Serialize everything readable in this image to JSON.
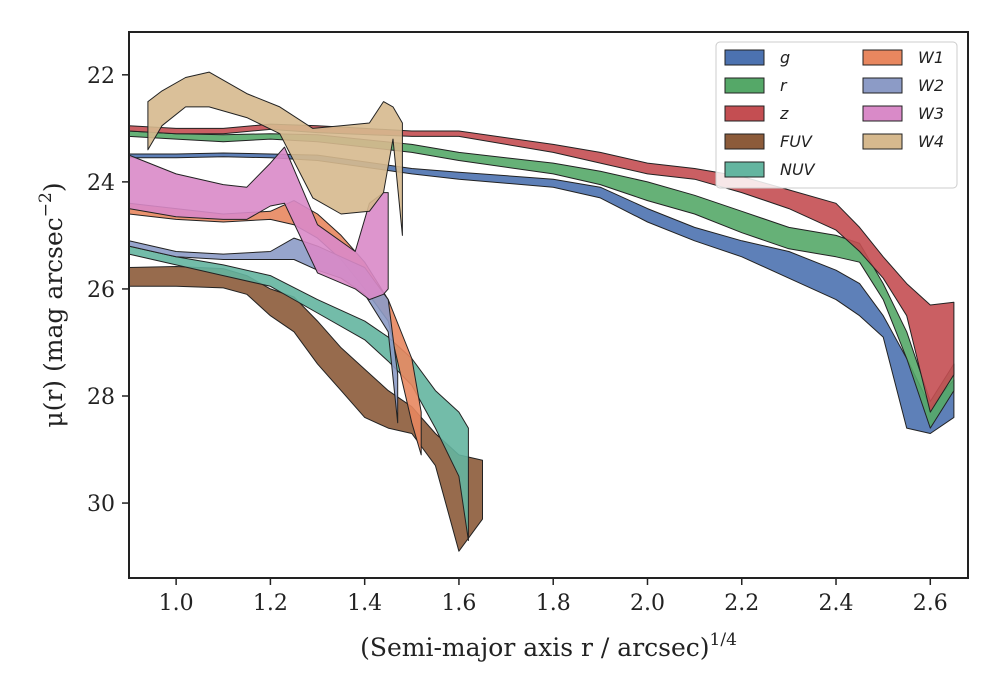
{
  "chart_data": {
    "type": "area",
    "title": "",
    "xlabel": "(Semi-major axis r / arcsec)",
    "xlabel_exponent": "1/4",
    "ylabel": "μ(r) (mag arcsec",
    "ylabel_exponent": "−2",
    "ylabel_close": ")",
    "xlim": [
      0.9,
      2.68
    ],
    "ylim": [
      31.4,
      21.2
    ],
    "y_inverted": true,
    "xticks": [
      1.0,
      1.2,
      1.4,
      1.6,
      1.8,
      2.0,
      2.2,
      2.4,
      2.6
    ],
    "xtick_labels": [
      "1.0",
      "1.2",
      "1.4",
      "1.6",
      "1.8",
      "2.0",
      "2.2",
      "2.4",
      "2.6"
    ],
    "yticks": [
      22,
      24,
      26,
      28,
      30
    ],
    "ytick_labels": [
      "22",
      "24",
      "26",
      "28",
      "30"
    ],
    "grid": false,
    "legend_position": "top-right",
    "legend_columns": 2,
    "series": [
      {
        "name": "g",
        "color": "#4c72b0",
        "x": [
          0.9,
          1.0,
          1.1,
          1.2,
          1.3,
          1.5,
          1.6,
          1.8,
          1.9,
          2.0,
          2.1,
          2.2,
          2.3,
          2.4,
          2.45,
          2.5,
          2.55,
          2.6,
          2.65
        ],
        "y1": [
          23.48,
          23.48,
          23.46,
          23.48,
          23.5,
          23.75,
          23.82,
          23.95,
          24.1,
          24.5,
          24.85,
          25.1,
          25.3,
          25.65,
          25.9,
          26.5,
          27.3,
          28.2,
          27.7
        ],
        "y2": [
          23.55,
          23.55,
          23.53,
          23.55,
          23.6,
          23.85,
          23.95,
          24.1,
          24.3,
          24.75,
          25.1,
          25.4,
          25.8,
          26.2,
          26.5,
          26.9,
          28.6,
          28.7,
          28.4
        ]
      },
      {
        "name": "r",
        "color": "#55a868",
        "x": [
          0.9,
          1.0,
          1.1,
          1.2,
          1.3,
          1.5,
          1.6,
          1.8,
          1.9,
          2.0,
          2.1,
          2.2,
          2.3,
          2.4,
          2.45,
          2.5,
          2.55,
          2.6,
          2.65
        ],
        "y1": [
          23.05,
          23.1,
          23.12,
          23.1,
          23.12,
          23.3,
          23.45,
          23.65,
          23.8,
          24.0,
          24.25,
          24.55,
          24.85,
          25.0,
          25.15,
          25.9,
          26.8,
          28.1,
          27.4
        ],
        "y2": [
          23.15,
          23.2,
          23.25,
          23.2,
          23.25,
          23.45,
          23.6,
          23.85,
          24.05,
          24.35,
          24.6,
          24.95,
          25.25,
          25.4,
          25.5,
          26.2,
          27.3,
          28.6,
          27.9
        ]
      },
      {
        "name": "z",
        "color": "#c44e52",
        "x": [
          0.9,
          1.0,
          1.1,
          1.2,
          1.3,
          1.5,
          1.6,
          1.8,
          1.9,
          2.0,
          2.1,
          2.2,
          2.3,
          2.4,
          2.45,
          2.5,
          2.55,
          2.6,
          2.65
        ],
        "y1": [
          22.95,
          23.0,
          23.0,
          22.92,
          22.95,
          23.05,
          23.05,
          23.3,
          23.45,
          23.65,
          23.75,
          23.9,
          24.15,
          24.4,
          24.85,
          25.4,
          25.9,
          26.3,
          26.25
        ],
        "y2": [
          23.05,
          23.1,
          23.1,
          23.02,
          23.08,
          23.15,
          23.15,
          23.45,
          23.65,
          23.85,
          23.95,
          24.2,
          24.5,
          24.9,
          25.3,
          25.8,
          26.5,
          28.3,
          27.6
        ]
      },
      {
        "name": "FUV",
        "color": "#8c5b3a",
        "x": [
          0.9,
          1.0,
          1.1,
          1.15,
          1.2,
          1.25,
          1.3,
          1.35,
          1.4,
          1.45,
          1.5,
          1.55,
          1.6,
          1.65
        ],
        "y1": [
          25.6,
          25.58,
          25.62,
          25.75,
          26.0,
          26.15,
          26.6,
          27.1,
          27.5,
          27.9,
          28.2,
          28.7,
          29.1,
          29.2
        ],
        "y2": [
          25.95,
          25.95,
          25.98,
          26.1,
          26.5,
          26.8,
          27.4,
          27.9,
          28.4,
          28.6,
          28.7,
          29.3,
          30.9,
          30.3
        ]
      },
      {
        "name": "NUV",
        "color": "#64b5a0",
        "x": [
          0.9,
          1.0,
          1.1,
          1.2,
          1.3,
          1.4,
          1.45,
          1.5,
          1.55,
          1.6,
          1.62
        ],
        "y1": [
          25.2,
          25.4,
          25.55,
          25.75,
          26.2,
          26.6,
          26.9,
          27.3,
          27.9,
          28.3,
          28.6
        ],
        "y2": [
          25.35,
          25.55,
          25.75,
          25.95,
          26.45,
          26.95,
          27.35,
          27.8,
          28.6,
          29.5,
          30.7
        ]
      },
      {
        "name": "W1",
        "color": "#e8875f",
        "x": [
          0.9,
          1.0,
          1.1,
          1.2,
          1.25,
          1.3,
          1.35,
          1.4,
          1.45,
          1.5,
          1.52
        ],
        "y1": [
          24.4,
          24.5,
          24.6,
          24.55,
          24.35,
          24.6,
          25.0,
          25.5,
          26.2,
          27.3,
          28.3
        ],
        "y2": [
          24.6,
          24.7,
          24.75,
          24.7,
          24.8,
          25.05,
          25.45,
          26.0,
          26.6,
          28.5,
          29.1
        ]
      },
      {
        "name": "W2",
        "color": "#8c9bc6",
        "x": [
          0.9,
          1.0,
          1.1,
          1.2,
          1.25,
          1.3,
          1.35,
          1.4,
          1.45,
          1.47
        ],
        "y1": [
          25.1,
          25.3,
          25.35,
          25.3,
          25.05,
          25.2,
          25.4,
          25.6,
          26.2,
          27.6
        ],
        "y2": [
          25.2,
          25.4,
          25.45,
          25.45,
          25.45,
          25.65,
          25.8,
          26.1,
          26.8,
          28.5
        ]
      },
      {
        "name": "W3",
        "color": "#d98ac8",
        "x": [
          0.9,
          1.0,
          1.1,
          1.15,
          1.2,
          1.23,
          1.3,
          1.38,
          1.41,
          1.44,
          1.45
        ],
        "y1": [
          23.5,
          23.85,
          24.05,
          24.1,
          23.65,
          23.35,
          24.8,
          25.3,
          24.4,
          24.2,
          24.2
        ],
        "y2": [
          24.5,
          24.65,
          24.7,
          24.7,
          24.45,
          24.4,
          25.7,
          26.0,
          26.2,
          26.1,
          26.0
        ]
      },
      {
        "name": "W4",
        "color": "#d6b98e",
        "x": [
          0.94,
          0.97,
          1.02,
          1.07,
          1.15,
          1.22,
          1.29,
          1.35,
          1.41,
          1.44,
          1.46,
          1.48
        ],
        "y1": [
          22.5,
          22.3,
          22.05,
          21.95,
          22.35,
          22.6,
          23.0,
          22.95,
          22.9,
          22.5,
          22.6,
          22.9
        ],
        "y2": [
          23.4,
          22.95,
          22.6,
          22.6,
          22.8,
          23.1,
          24.3,
          24.6,
          24.55,
          24.2,
          23.2,
          25.0
        ]
      }
    ]
  }
}
